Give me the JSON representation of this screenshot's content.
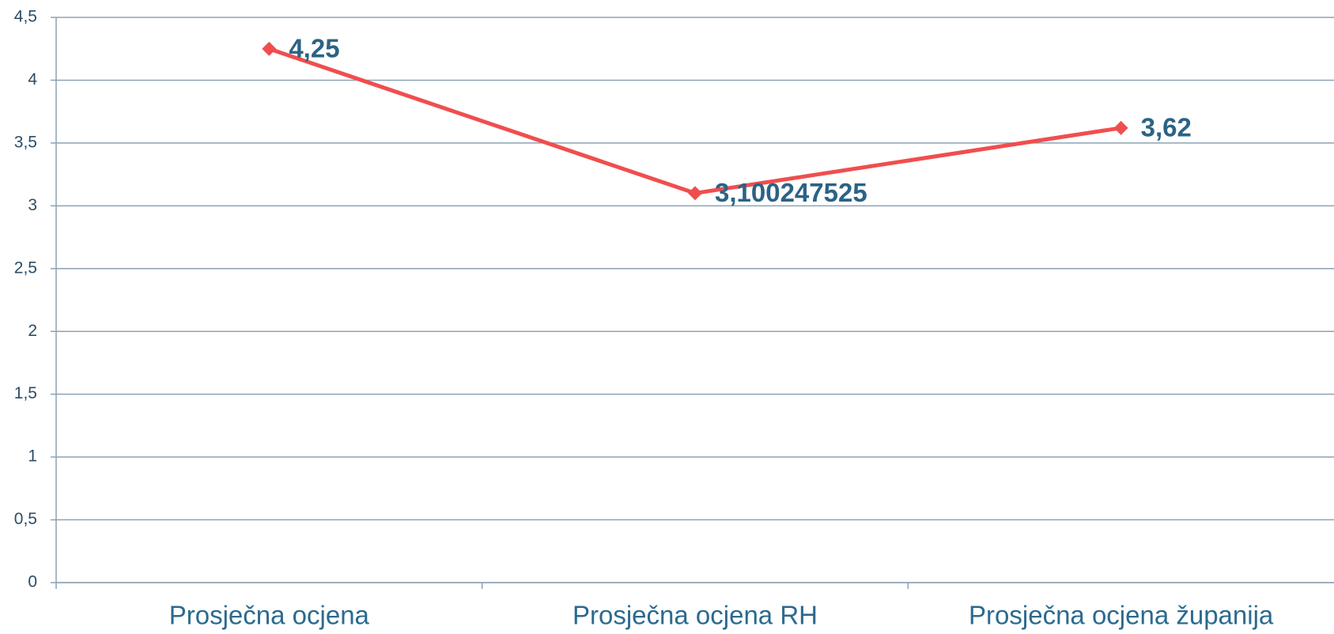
{
  "chart_data": {
    "type": "line",
    "categories": [
      "Prosječna ocjena",
      "Prosječna ocjena RH",
      "Prosječna ocjena županija"
    ],
    "values": [
      4.25,
      3.100247525,
      3.62
    ],
    "value_labels": [
      "4,25",
      "3,100247525",
      "3,62"
    ],
    "color": "#f04e4e",
    "ylim": [
      0,
      4.5
    ],
    "yticks": [
      0,
      {
        "value": 0.5,
        "label": "0,5"
      },
      1,
      {
        "value": 1.5,
        "label": "1,5"
      },
      2,
      {
        "value": 2.5,
        "label": "2,5"
      },
      3,
      {
        "value": 3.5,
        "label": "3,5"
      },
      4,
      {
        "value": 4.5,
        "label": "4,5"
      }
    ],
    "grid": true
  }
}
